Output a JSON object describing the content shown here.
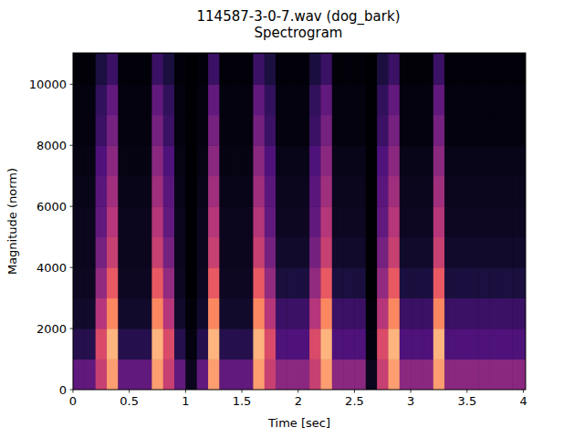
{
  "chart_data": {
    "type": "heatmap",
    "title": "114587-3-0-7.wav (dog_bark)",
    "subtitle": "Spectrogram",
    "x_label": "Time [sec]",
    "y_label": "Magnitude (norm)",
    "xlim": [
      0,
      4.02
    ],
    "ylim": [
      0,
      11025
    ],
    "xticks": [
      0,
      0.5,
      1,
      1.5,
      2,
      2.5,
      3,
      3.5,
      4
    ],
    "yticks": [
      0,
      2000,
      4000,
      6000,
      8000,
      10000
    ],
    "x": [
      0,
      0.1,
      0.2,
      0.3,
      0.4,
      0.5,
      0.6,
      0.7,
      0.8,
      0.9,
      1,
      1.1,
      1.2,
      1.3,
      1.4,
      1.5,
      1.6,
      1.7,
      1.8,
      1.9,
      2,
      2.1,
      2.2,
      2.3,
      2.4,
      2.5,
      2.6,
      2.7,
      2.8,
      2.9,
      3,
      3.1,
      3.2,
      3.3,
      3.4,
      3.5,
      3.6,
      3.7,
      3.8,
      3.9,
      4.02
    ],
    "y": [
      0,
      1000,
      2000,
      3000,
      4000,
      5000,
      6000,
      7000,
      8000,
      9000,
      10000,
      11000
    ],
    "values": [
      [
        0.3,
        0.3,
        0.55,
        0.8,
        0.3,
        0.3,
        0.3,
        0.8,
        0.55,
        0.3,
        0.05,
        0.3,
        0.8,
        0.3,
        0.3,
        0.3,
        0.8,
        0.55,
        0.4,
        0.4,
        0.4,
        0.55,
        0.8,
        0.4,
        0.4,
        0.4,
        0.05,
        0.55,
        0.8,
        0.4,
        0.4,
        0.4,
        0.8,
        0.4,
        0.4,
        0.4,
        0.4,
        0.4,
        0.4,
        0.4
      ],
      [
        0.15,
        0.15,
        0.6,
        0.85,
        0.15,
        0.15,
        0.15,
        0.85,
        0.6,
        0.15,
        0.02,
        0.15,
        0.85,
        0.15,
        0.15,
        0.15,
        0.85,
        0.6,
        0.25,
        0.25,
        0.25,
        0.6,
        0.85,
        0.25,
        0.25,
        0.25,
        0.02,
        0.6,
        0.85,
        0.25,
        0.25,
        0.25,
        0.85,
        0.25,
        0.25,
        0.25,
        0.25,
        0.25,
        0.25,
        0.25
      ],
      [
        0.08,
        0.08,
        0.5,
        0.75,
        0.08,
        0.08,
        0.08,
        0.75,
        0.5,
        0.08,
        0.01,
        0.08,
        0.75,
        0.08,
        0.08,
        0.08,
        0.75,
        0.5,
        0.2,
        0.2,
        0.2,
        0.5,
        0.75,
        0.2,
        0.2,
        0.2,
        0.01,
        0.5,
        0.75,
        0.2,
        0.2,
        0.2,
        0.75,
        0.2,
        0.2,
        0.2,
        0.2,
        0.2,
        0.2,
        0.2
      ],
      [
        0.06,
        0.06,
        0.42,
        0.65,
        0.06,
        0.06,
        0.06,
        0.65,
        0.42,
        0.06,
        0,
        0.06,
        0.65,
        0.06,
        0.06,
        0.06,
        0.65,
        0.42,
        0.12,
        0.12,
        0.12,
        0.42,
        0.65,
        0.12,
        0.12,
        0.12,
        0,
        0.42,
        0.65,
        0.12,
        0.12,
        0.12,
        0.65,
        0.12,
        0.12,
        0.12,
        0.12,
        0.12,
        0.12,
        0.12
      ],
      [
        0.05,
        0.05,
        0.35,
        0.55,
        0.05,
        0.05,
        0.05,
        0.55,
        0.35,
        0.05,
        0,
        0.05,
        0.55,
        0.05,
        0.05,
        0.05,
        0.55,
        0.35,
        0.08,
        0.08,
        0.08,
        0.35,
        0.55,
        0.08,
        0.08,
        0.08,
        0,
        0.35,
        0.55,
        0.08,
        0.08,
        0.08,
        0.55,
        0.08,
        0.08,
        0.08,
        0.08,
        0.08,
        0.08,
        0.08
      ],
      [
        0.05,
        0.05,
        0.3,
        0.5,
        0.05,
        0.05,
        0.05,
        0.5,
        0.3,
        0.05,
        0,
        0.05,
        0.5,
        0.05,
        0.05,
        0.05,
        0.5,
        0.3,
        0.06,
        0.06,
        0.06,
        0.3,
        0.5,
        0.06,
        0.06,
        0.06,
        0,
        0.3,
        0.5,
        0.06,
        0.06,
        0.06,
        0.5,
        0.06,
        0.06,
        0.06,
        0.06,
        0.06,
        0.06,
        0.06
      ],
      [
        0.04,
        0.04,
        0.28,
        0.45,
        0.04,
        0.04,
        0.04,
        0.45,
        0.28,
        0.04,
        0,
        0.04,
        0.45,
        0.04,
        0.04,
        0.04,
        0.45,
        0.28,
        0.05,
        0.05,
        0.05,
        0.28,
        0.45,
        0.05,
        0.05,
        0.05,
        0,
        0.28,
        0.45,
        0.05,
        0.05,
        0.05,
        0.45,
        0.05,
        0.05,
        0.05,
        0.05,
        0.05,
        0.05,
        0.05
      ],
      [
        0.03,
        0.03,
        0.25,
        0.4,
        0.03,
        0.03,
        0.03,
        0.4,
        0.25,
        0.03,
        0,
        0.03,
        0.4,
        0.03,
        0.03,
        0.03,
        0.4,
        0.25,
        0.04,
        0.04,
        0.04,
        0.25,
        0.4,
        0.04,
        0.04,
        0.04,
        0,
        0.25,
        0.4,
        0.04,
        0.04,
        0.04,
        0.4,
        0.04,
        0.04,
        0.04,
        0.04,
        0.04,
        0.04,
        0.04
      ],
      [
        0.02,
        0.02,
        0.2,
        0.35,
        0.02,
        0.02,
        0.02,
        0.35,
        0.2,
        0.02,
        0,
        0.02,
        0.35,
        0.02,
        0.02,
        0.02,
        0.35,
        0.2,
        0.02,
        0.02,
        0.02,
        0.2,
        0.35,
        0.02,
        0.02,
        0.02,
        0,
        0.2,
        0.35,
        0.02,
        0.02,
        0.02,
        0.35,
        0.02,
        0.02,
        0.02,
        0.02,
        0.02,
        0.02,
        0.02
      ],
      [
        0.02,
        0.02,
        0.18,
        0.3,
        0.02,
        0.02,
        0.02,
        0.3,
        0.18,
        0.02,
        0,
        0.02,
        0.3,
        0.02,
        0.02,
        0.02,
        0.3,
        0.18,
        0.02,
        0.02,
        0.02,
        0.18,
        0.3,
        0.02,
        0.02,
        0.02,
        0,
        0.18,
        0.3,
        0.02,
        0.02,
        0.02,
        0.3,
        0.02,
        0.02,
        0.02,
        0.02,
        0.02,
        0.02,
        0.02
      ],
      [
        0.01,
        0.01,
        0.12,
        0.2,
        0.01,
        0.01,
        0.01,
        0.2,
        0.12,
        0.01,
        0,
        0.01,
        0.2,
        0.01,
        0.01,
        0.01,
        0.2,
        0.12,
        0.01,
        0.01,
        0.01,
        0.12,
        0.2,
        0.01,
        0.01,
        0.01,
        0,
        0.12,
        0.2,
        0.01,
        0.01,
        0.01,
        0.2,
        0.01,
        0.01,
        0.01,
        0.01,
        0.01,
        0.01,
        0.01
      ]
    ]
  }
}
